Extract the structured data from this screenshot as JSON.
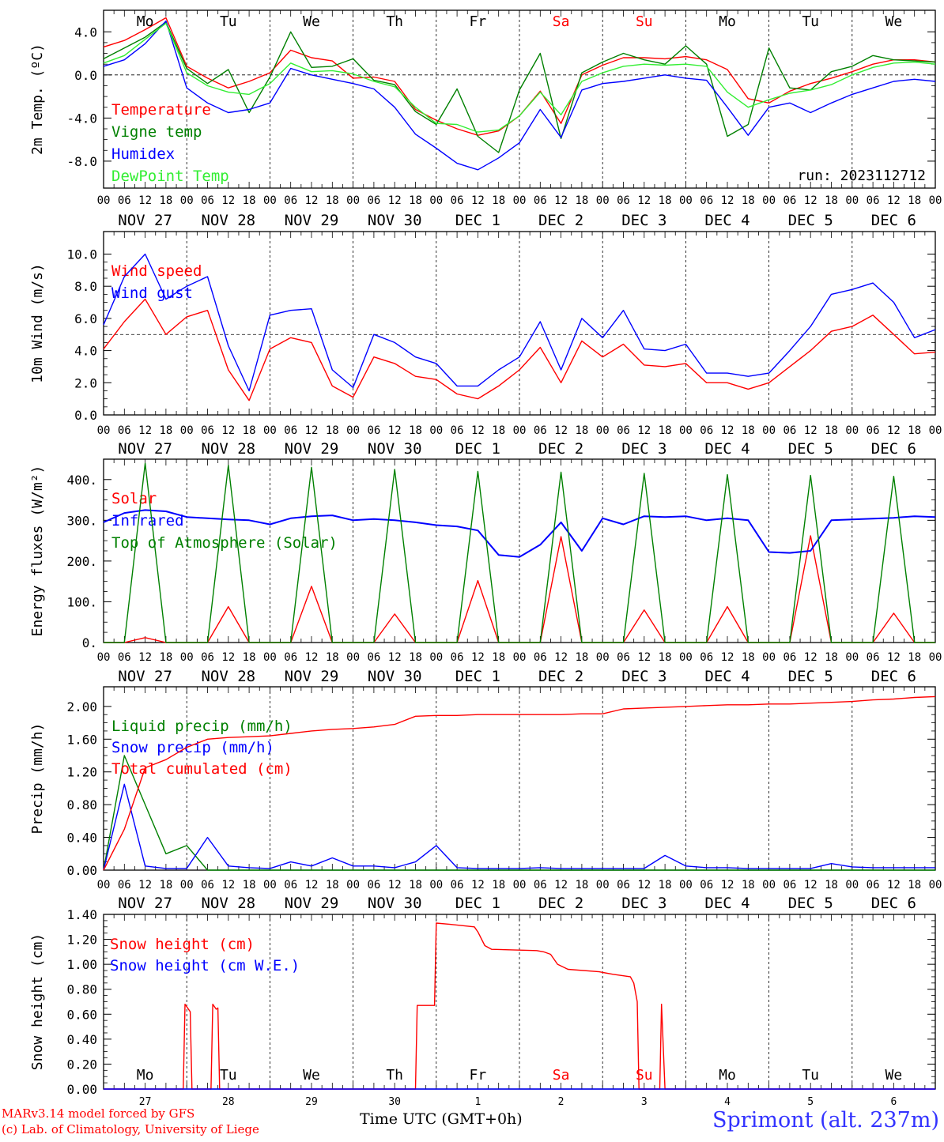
{
  "footer": {
    "credit_line1": "MARv3.14 model forced by GFS",
    "credit_line2": "(c) Lab. of Climatology, University of Liege",
    "xlabel": "Time UTC (GMT+0h)",
    "station": "Sprimont (alt. 237m)"
  },
  "colors": {
    "red": "#ff0000",
    "green": "#008000",
    "blue": "#0000ff",
    "light_green": "#33ee33"
  },
  "chart_data": [
    {
      "type": "line",
      "ylabel": "2m Temp. (ºC)",
      "ylim": [
        -10.5,
        6.0
      ],
      "y_ticks": [
        "4.0",
        "0.0",
        "-4.0",
        "-8.0"
      ],
      "y_tick_values": [
        4,
        0,
        -4,
        -8
      ],
      "reference_line": 0,
      "day_labels": [
        "Mo",
        "Tu",
        "We",
        "Th",
        "Fr",
        "Sa",
        "Su",
        "Mo",
        "Tu",
        "We"
      ],
      "run_label": "run: 2023112712",
      "x_hours": [
        0,
        6,
        12,
        18,
        24,
        30,
        36,
        42,
        48,
        54,
        60,
        66,
        72,
        78,
        84,
        90,
        96,
        102,
        108,
        114,
        120,
        126,
        132,
        138,
        144,
        150,
        156,
        162,
        168,
        174,
        180,
        186,
        192,
        198,
        204,
        210,
        216,
        222,
        228,
        234,
        240
      ],
      "series": [
        {
          "name": "Temperature",
          "color": "red",
          "values": [
            2.6,
            3.2,
            4.2,
            5.3,
            0.8,
            -0.3,
            -1.2,
            -0.6,
            0.2,
            2.3,
            1.6,
            1.3,
            -0.3,
            -0.2,
            -0.6,
            -3.2,
            -4.2,
            -5.0,
            -5.6,
            -5.2,
            -3.8,
            -1.5,
            -4.5,
            0.0,
            0.9,
            1.6,
            1.6,
            1.5,
            1.7,
            1.4,
            0.5,
            -2.2,
            -2.6,
            -1.5,
            -0.8,
            -0.3,
            0.3,
            1.0,
            1.4,
            1.4,
            1.2
          ]
        },
        {
          "name": "Vigne temp",
          "color": "green",
          "values": [
            1.5,
            2.5,
            3.5,
            4.9,
            0.6,
            -0.8,
            0.5,
            -3.5,
            -0.2,
            4.0,
            0.7,
            0.8,
            1.5,
            -0.5,
            -0.9,
            -3.4,
            -4.6,
            -1.3,
            -5.7,
            -7.2,
            -1.4,
            2.0,
            -5.9,
            0.2,
            1.2,
            2.0,
            1.4,
            1.0,
            2.7,
            1.0,
            -5.7,
            -4.6,
            2.5,
            -1.2,
            -1.4,
            0.3,
            0.8,
            1.8,
            1.4,
            1.3,
            1.2
          ]
        },
        {
          "name": "Humidex",
          "color": "blue",
          "values": [
            0.8,
            1.4,
            2.9,
            5.0,
            -1.2,
            -2.6,
            -3.5,
            -3.2,
            -2.6,
            0.6,
            0.0,
            -0.4,
            -0.8,
            -1.3,
            -3.0,
            -5.5,
            -6.8,
            -8.2,
            -8.8,
            -7.7,
            -6.3,
            -3.2,
            -5.8,
            -1.4,
            -0.8,
            -0.6,
            -0.3,
            0.0,
            -0.3,
            -0.5,
            -3.0,
            -5.6,
            -3.0,
            -2.6,
            -3.5,
            -2.6,
            -1.8,
            -1.2,
            -0.6,
            -0.4,
            -0.6
          ]
        },
        {
          "name": "DewPoint Temp",
          "color": "light_green",
          "values": [
            1.1,
            1.8,
            3.3,
            4.8,
            0.2,
            -1.0,
            -1.6,
            -1.8,
            -0.8,
            1.1,
            0.3,
            0.4,
            0.1,
            -0.6,
            -1.1,
            -3.0,
            -4.5,
            -4.6,
            -5.3,
            -5.1,
            -3.8,
            -1.6,
            -3.7,
            -0.6,
            0.2,
            0.8,
            1.0,
            0.9,
            1.0,
            0.8,
            -1.6,
            -3.0,
            -2.3,
            -1.7,
            -1.4,
            -0.9,
            0.0,
            0.7,
            1.1,
            1.2,
            1.0
          ]
        }
      ]
    },
    {
      "type": "line",
      "ylabel": "10m Wind (m/s)",
      "ylim": [
        0,
        11.4
      ],
      "y_ticks": [
        "10.0",
        "8.0",
        "6.0",
        "4.0",
        "2.0",
        "0.0"
      ],
      "y_tick_values": [
        10,
        8,
        6,
        4,
        2,
        0
      ],
      "reference_line": 5,
      "x_hours": [
        0,
        6,
        12,
        18,
        24,
        30,
        36,
        42,
        48,
        54,
        60,
        66,
        72,
        78,
        84,
        90,
        96,
        102,
        108,
        114,
        120,
        126,
        132,
        138,
        144,
        150,
        156,
        162,
        168,
        174,
        180,
        186,
        192,
        198,
        204,
        210,
        216,
        222,
        228,
        234,
        240
      ],
      "series": [
        {
          "name": "Wind speed",
          "color": "red",
          "values": [
            4.1,
            5.8,
            7.2,
            5.0,
            6.1,
            6.5,
            2.8,
            0.9,
            4.1,
            4.8,
            4.5,
            1.8,
            1.1,
            3.6,
            3.2,
            2.4,
            2.2,
            1.3,
            1.0,
            1.8,
            2.8,
            4.2,
            2.0,
            4.6,
            3.6,
            4.4,
            3.1,
            3.0,
            3.2,
            2.0,
            2.0,
            1.6,
            2.0,
            3.0,
            4.0,
            5.2,
            5.5,
            6.2,
            5.0,
            3.8,
            3.9
          ]
        },
        {
          "name": "Wind gust",
          "color": "blue",
          "values": [
            5.6,
            8.6,
            10.0,
            7.2,
            8.0,
            8.6,
            4.3,
            1.5,
            6.2,
            6.5,
            6.6,
            2.8,
            1.7,
            5.0,
            4.5,
            3.6,
            3.2,
            1.8,
            1.8,
            2.8,
            3.6,
            5.8,
            2.8,
            6.0,
            4.8,
            6.5,
            4.1,
            4.0,
            4.4,
            2.6,
            2.6,
            2.4,
            2.6,
            4.0,
            5.5,
            7.5,
            7.8,
            8.2,
            7.0,
            4.8,
            5.3
          ]
        }
      ]
    },
    {
      "type": "line",
      "ylabel": "Energy fluxes (W/m²)",
      "ylim": [
        0,
        450
      ],
      "y_ticks": [
        "400.",
        "300.",
        "200.",
        "100.",
        "0."
      ],
      "y_tick_values": [
        400,
        300,
        200,
        100,
        0
      ],
      "x_hours": [
        0,
        6,
        12,
        18,
        24,
        30,
        36,
        42,
        48,
        54,
        60,
        66,
        72,
        78,
        84,
        90,
        96,
        102,
        108,
        114,
        120,
        126,
        132,
        138,
        144,
        150,
        156,
        162,
        168,
        174,
        180,
        186,
        192,
        198,
        204,
        210,
        216,
        222,
        228,
        234,
        240
      ],
      "series": [
        {
          "name": "Solar",
          "color": "red",
          "values": [
            0,
            0,
            12,
            0,
            0,
            0,
            88,
            0,
            0,
            0,
            138,
            0,
            0,
            0,
            70,
            0,
            0,
            0,
            152,
            0,
            0,
            0,
            260,
            0,
            0,
            0,
            80,
            0,
            0,
            0,
            88,
            0,
            0,
            0,
            262,
            0,
            0,
            0,
            72,
            0,
            0
          ]
        },
        {
          "name": "Infrared",
          "color": "blue",
          "values": [
            295,
            318,
            325,
            322,
            308,
            305,
            302,
            300,
            290,
            305,
            310,
            312,
            300,
            303,
            300,
            295,
            288,
            285,
            275,
            215,
            210,
            240,
            295,
            225,
            305,
            290,
            310,
            308,
            310,
            300,
            305,
            300,
            222,
            220,
            225,
            300,
            302,
            304,
            306,
            310,
            308
          ]
        },
        {
          "name": "Top of Atmosphere (Solar)",
          "color": "green",
          "values": [
            0,
            0,
            440,
            0,
            0,
            0,
            435,
            0,
            0,
            0,
            430,
            0,
            0,
            0,
            425,
            0,
            0,
            0,
            420,
            0,
            0,
            0,
            418,
            0,
            0,
            0,
            415,
            0,
            0,
            0,
            412,
            0,
            0,
            0,
            410,
            0,
            0,
            0,
            408,
            0,
            0
          ]
        }
      ]
    },
    {
      "type": "line",
      "ylabel": "Precip (mm/h)",
      "ylim": [
        0,
        2.24
      ],
      "y_ticks": [
        "2.00",
        "1.60",
        "1.20",
        "0.80",
        "0.40",
        "0.00"
      ],
      "y_tick_values": [
        2.0,
        1.6,
        1.2,
        0.8,
        0.4,
        0.0
      ],
      "x_hours": [
        0,
        6,
        12,
        18,
        24,
        30,
        36,
        42,
        48,
        54,
        60,
        66,
        72,
        78,
        84,
        90,
        96,
        102,
        108,
        114,
        120,
        126,
        132,
        138,
        144,
        150,
        156,
        162,
        168,
        174,
        180,
        186,
        192,
        198,
        204,
        210,
        216,
        222,
        228,
        234,
        240
      ],
      "series": [
        {
          "name": "Liquid precip (mm/h)",
          "color": "green",
          "values": [
            0,
            1.4,
            0.8,
            0.2,
            0.3,
            0,
            0,
            0,
            0,
            0,
            0,
            0,
            0,
            0,
            0,
            0,
            0,
            0,
            0,
            0,
            0,
            0,
            0,
            0,
            0,
            0,
            0,
            0,
            0,
            0,
            0,
            0,
            0,
            0,
            0,
            0,
            0,
            0,
            0,
            0,
            0
          ]
        },
        {
          "name": "Snow precip (mm/h)",
          "color": "blue",
          "values": [
            0,
            1.05,
            0.05,
            0.02,
            0.02,
            0.4,
            0.05,
            0.03,
            0.02,
            0.1,
            0.05,
            0.15,
            0.05,
            0.05,
            0.03,
            0.1,
            0.3,
            0.03,
            0.02,
            0.02,
            0.02,
            0.03,
            0.02,
            0.02,
            0.02,
            0.02,
            0.02,
            0.18,
            0.05,
            0.03,
            0.03,
            0.02,
            0.02,
            0.02,
            0.02,
            0.08,
            0.04,
            0.03,
            0.03,
            0.03,
            0.03
          ]
        },
        {
          "name": "Total cumulated (cm)",
          "color": "red",
          "values": [
            0,
            0.5,
            1.25,
            1.35,
            1.5,
            1.6,
            1.62,
            1.63,
            1.64,
            1.67,
            1.7,
            1.72,
            1.73,
            1.75,
            1.78,
            1.88,
            1.89,
            1.89,
            1.9,
            1.9,
            1.9,
            1.9,
            1.9,
            1.91,
            1.91,
            1.97,
            1.98,
            1.99,
            2.0,
            2.01,
            2.02,
            2.02,
            2.03,
            2.03,
            2.04,
            2.05,
            2.06,
            2.08,
            2.09,
            2.11,
            2.12
          ]
        }
      ]
    },
    {
      "type": "line",
      "ylabel": "Snow height (cm)",
      "ylim": [
        0,
        1.4
      ],
      "y_ticks": [
        "1.40",
        "1.20",
        "1.00",
        "0.80",
        "0.60",
        "0.40",
        "0.20",
        "0.00"
      ],
      "y_tick_values": [
        1.4,
        1.2,
        1.0,
        0.8,
        0.6,
        0.4,
        0.2,
        0.0
      ],
      "day_labels": [
        "Mo",
        "Tu",
        "We",
        "Th",
        "Fr",
        "Sa",
        "Su",
        "Mo",
        "Tu",
        "We"
      ],
      "date_labels": [
        "27",
        "28",
        "29",
        "30",
        "1",
        "2",
        "3",
        "4",
        "5",
        "6"
      ],
      "series": [
        {
          "name": "Snow height (cm)",
          "color": "red",
          "points": [
            [
              0,
              0
            ],
            [
              23,
              0
            ],
            [
              23.5,
              0.68
            ],
            [
              25,
              0.62
            ],
            [
              25.5,
              0
            ],
            [
              31,
              0
            ],
            [
              31.5,
              0.68
            ],
            [
              32.5,
              0.64
            ],
            [
              33,
              0.65
            ],
            [
              33.5,
              0
            ],
            [
              90,
              0
            ],
            [
              90.5,
              0.67
            ],
            [
              95.5,
              0.67
            ],
            [
              96,
              1.33
            ],
            [
              100,
              1.32
            ],
            [
              107,
              1.3
            ],
            [
              108,
              1.26
            ],
            [
              110,
              1.15
            ],
            [
              112,
              1.12
            ],
            [
              125,
              1.11
            ],
            [
              127,
              1.1
            ],
            [
              129,
              1.08
            ],
            [
              131,
              1.0
            ],
            [
              134,
              0.96
            ],
            [
              143,
              0.94
            ],
            [
              147,
              0.92
            ],
            [
              152,
              0.9
            ],
            [
              153,
              0.85
            ],
            [
              154,
              0.7
            ],
            [
              154.5,
              0
            ],
            [
              160.5,
              0
            ],
            [
              161,
              0.68
            ],
            [
              162,
              0
            ],
            [
              240,
              0
            ]
          ]
        },
        {
          "name": "Snow height (cm W.E.)",
          "color": "blue",
          "points": [
            [
              0,
              0
            ],
            [
              240,
              0
            ]
          ]
        }
      ]
    }
  ],
  "x_axis": {
    "hour_tick_labels": [
      "00",
      "06",
      "12",
      "18"
    ],
    "final_tick_label": "00",
    "date_labels": [
      "NOV 27",
      "NOV 28",
      "NOV 29",
      "NOV 30",
      "DEC  1",
      "DEC  2",
      "DEC  3",
      "DEC  4",
      "DEC  5",
      "DEC  6"
    ]
  }
}
